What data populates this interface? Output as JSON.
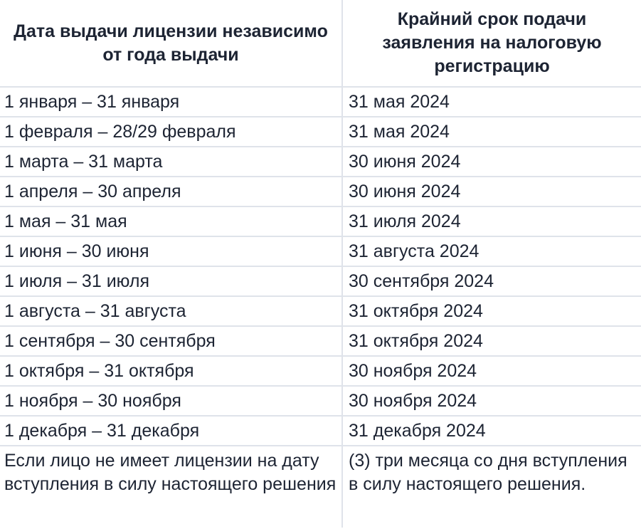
{
  "header": {
    "col1": "Дата выдачи лицензии независимо от года выдачи",
    "col2": "Крайний срок подачи заявления на налоговую регистрацию"
  },
  "rows": [
    {
      "period": "1 января – 31 января",
      "deadline": "31 мая 2024"
    },
    {
      "period": "1 февраля – 28/29 февраля",
      "deadline": "31 мая 2024"
    },
    {
      "period": "1 марта – 31 марта",
      "deadline": "30 июня 2024"
    },
    {
      "period": "1 апреля – 30 апреля",
      "deadline": "30 июня 2024"
    },
    {
      "period": "1 мая – 31 мая",
      "deadline": "31 июля 2024"
    },
    {
      "period": "1 июня – 30 июня",
      "deadline": "31 августа 2024"
    },
    {
      "period": "1 июля – 31 июля",
      "deadline": "30 сентября 2024"
    },
    {
      "period": "1 августа – 31 августа",
      "deadline": "31 октября 2024"
    },
    {
      "period": "1 сентября – 30 сентября",
      "deadline": "31 октября 2024"
    },
    {
      "period": "1 октября – 31 октября",
      "deadline": "30 ноября 2024"
    },
    {
      "period": "1 ноября – 30 ноября",
      "deadline": "30 ноября 2024"
    },
    {
      "period": "1 декабря – 31 декабря",
      "deadline": "31 декабря 2024"
    }
  ],
  "note": {
    "period": "Если лицо не имеет лицензии на дату вступления в силу настоящего решения",
    "deadline": "(3) три месяца со дня вступления в силу настоящего решения."
  },
  "colors": {
    "text": "#1d2433",
    "border": "#dfe3ea",
    "background": "#ffffff"
  }
}
